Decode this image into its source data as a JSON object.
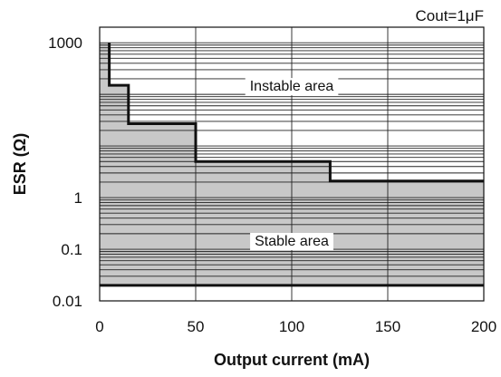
{
  "chart_data": {
    "type": "area",
    "annotation": "Cout=1μF",
    "xlabel": "Output current (mA)",
    "ylabel": "ESR (Ω)",
    "xlim": [
      0,
      200
    ],
    "ylim": [
      0.01,
      2000
    ],
    "y_scale": "log",
    "x_ticks": [
      0,
      50,
      100,
      150,
      200
    ],
    "x_tick_labels": [
      "0",
      "50",
      "100",
      "150",
      "200"
    ],
    "y_ticks": [
      0.01,
      0.1,
      1,
      1000
    ],
    "y_tick_labels": [
      "0.01",
      "0.1",
      "1",
      "1000"
    ],
    "grid": true,
    "boundary": {
      "name": "Stability boundary",
      "x": [
        5,
        5,
        15,
        15,
        50,
        50,
        120,
        120,
        200
      ],
      "y": [
        1000,
        150,
        150,
        27,
        27,
        5,
        5,
        2.1,
        2.1
      ]
    },
    "lower_limit": {
      "y": 0.02
    },
    "regions": [
      {
        "label": "Instable area",
        "x": 100,
        "y": 150
      },
      {
        "label": "Stable area",
        "x": 100,
        "y": 0.15
      }
    ],
    "colors": {
      "stable_fill": "#c8c8c8",
      "line": "#111111",
      "grid": "#222222"
    }
  }
}
